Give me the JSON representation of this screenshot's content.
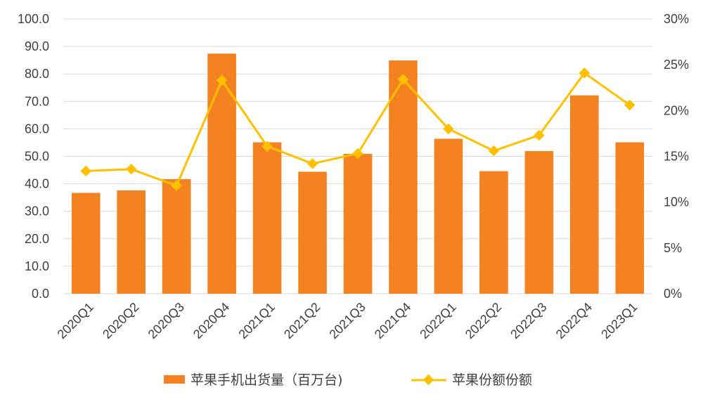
{
  "chart_data": {
    "type": "bar",
    "categories": [
      "2020Q1",
      "2020Q2",
      "2020Q3",
      "2020Q4",
      "2021Q1",
      "2021Q2",
      "2021Q3",
      "2021Q4",
      "2022Q1",
      "2022Q2",
      "2022Q3",
      "2022Q4",
      "2023Q1"
    ],
    "series": [
      {
        "name": "苹果手机出货量（百万台)",
        "type": "bar",
        "axis": "left",
        "color": "#F58220",
        "values": [
          36.7,
          37.6,
          41.7,
          87.4,
          55.1,
          44.4,
          50.9,
          84.9,
          56.4,
          44.6,
          51.9,
          72.2,
          55.1
        ]
      },
      {
        "name": "苹果份额份额",
        "type": "line",
        "axis": "right",
        "color": "#FFC000",
        "marker": "diamond",
        "values": [
          13.4,
          13.6,
          11.8,
          23.3,
          16.1,
          14.2,
          15.3,
          23.4,
          18.0,
          15.6,
          17.3,
          24.1,
          20.6
        ]
      }
    ],
    "y_left": {
      "min": 0,
      "max": 100,
      "step": 10,
      "tick_labels": [
        "0.0",
        "10.0",
        "20.0",
        "30.0",
        "40.0",
        "50.0",
        "60.0",
        "70.0",
        "80.0",
        "90.0",
        "100.0"
      ]
    },
    "y_right": {
      "min": 0,
      "max": 30,
      "step": 5,
      "tick_labels": [
        "0%",
        "5%",
        "10%",
        "15%",
        "20%",
        "25%",
        "30%"
      ]
    },
    "grid": true,
    "legend_position": "bottom"
  }
}
